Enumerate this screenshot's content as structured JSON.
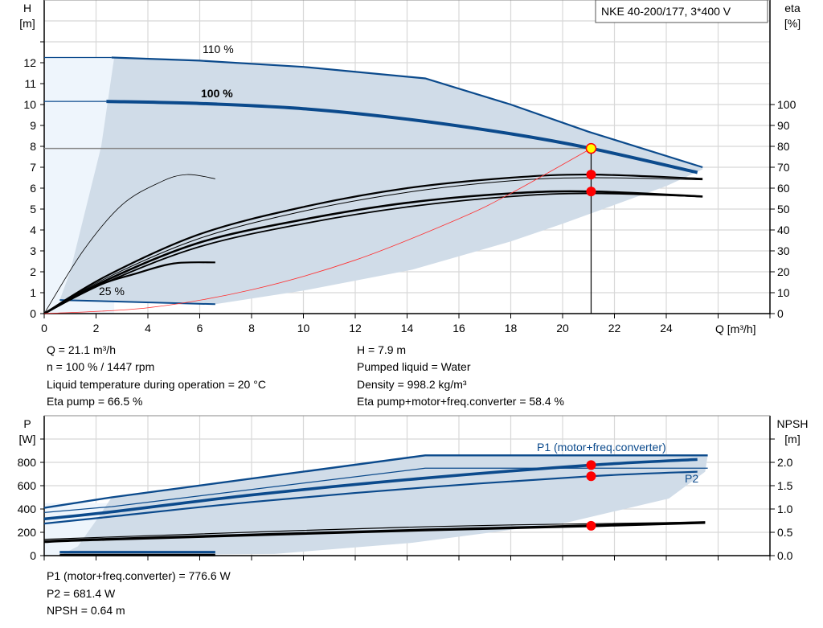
{
  "title_box": "NKE 40-200/177, 3*400 V",
  "colors": {
    "curve_blue": "#0b4a8c",
    "shade": "#d0dce8",
    "shade_light": "#eef5fc",
    "system_curve": "#ff3030",
    "duty_point": "#ffff00",
    "marker": "#ff0000",
    "grid": "#d8d8d8"
  },
  "chart_data": [
    {
      "type": "line",
      "name_box": "NKE 40-200/177, 3*400 V",
      "xlabel": "Q [m³/h]",
      "ylabel_left": [
        "H",
        "[m]"
      ],
      "ylabel_right": [
        "eta",
        "[%]"
      ],
      "xlim": [
        0,
        28
      ],
      "ylim_left": [
        0,
        15
      ],
      "ylim_right": [
        0,
        150
      ],
      "x_ticks": [
        "0",
        "2",
        "4",
        "6",
        "8",
        "10",
        "12",
        "14",
        "16",
        "18",
        "20",
        "22",
        "24"
      ],
      "y_ticks_left": [
        "0",
        "1",
        "2",
        "3",
        "4",
        "5",
        "6",
        "7",
        "8",
        "9",
        "10",
        "11",
        "12"
      ],
      "y_ticks_right": [
        "0",
        "10",
        "20",
        "30",
        "40",
        "50",
        "60",
        "70",
        "80",
        "90",
        "100"
      ],
      "grid": true,
      "curve_labels": {
        "speed_110": "110 %",
        "speed_100": "100 %",
        "speed_25": "25 %"
      },
      "series": [
        {
          "role": "H 110% speed",
          "axis": "left",
          "points": [
            [
              2.6,
              12.25
            ],
            [
              6,
              12.1
            ],
            [
              10,
              11.8
            ],
            [
              14.7,
              11.25
            ],
            [
              18,
              10
            ],
            [
              21,
              8.7
            ],
            [
              25.4,
              7.0
            ]
          ]
        },
        {
          "role": "H 100% speed",
          "axis": "left",
          "points": [
            [
              2.4,
              10.15
            ],
            [
              6,
              10.05
            ],
            [
              10,
              9.8
            ],
            [
              14,
              9.3
            ],
            [
              18,
              8.6
            ],
            [
              21.1,
              7.9
            ],
            [
              25.2,
              6.75
            ]
          ]
        },
        {
          "role": "H 25% speed",
          "axis": "left",
          "points": [
            [
              0.6,
              0.65
            ],
            [
              6.6,
              0.45
            ]
          ]
        },
        {
          "role": "eta pump",
          "axis": "right",
          "points": [
            [
              0,
              0
            ],
            [
              2.4,
              18
            ],
            [
              6,
              38
            ],
            [
              10,
              51
            ],
            [
              14,
              60
            ],
            [
              18,
              65
            ],
            [
              21.1,
              66.5
            ],
            [
              25.4,
              64.5
            ]
          ]
        },
        {
          "role": "eta pump secondary",
          "axis": "right",
          "points": [
            [
              0,
              0
            ],
            [
              2.4,
              17
            ],
            [
              6,
              36
            ],
            [
              10,
              49
            ],
            [
              14,
              58
            ],
            [
              18,
              63.5
            ],
            [
              21.1,
              65
            ],
            [
              25.4,
              64
            ]
          ]
        },
        {
          "role": "eta total",
          "axis": "right",
          "points": [
            [
              0,
              0
            ],
            [
              2.4,
              16
            ],
            [
              6,
              34
            ],
            [
              10,
              45
            ],
            [
              14,
              53
            ],
            [
              18,
              57.5
            ],
            [
              21.1,
              58.4
            ],
            [
              25.4,
              56
            ]
          ]
        },
        {
          "role": "eta total secondary",
          "axis": "right",
          "points": [
            [
              0,
              0
            ],
            [
              2.4,
              15
            ],
            [
              6,
              32
            ],
            [
              10,
              43
            ],
            [
              14,
              51
            ],
            [
              18,
              56
            ],
            [
              21.1,
              57.5
            ],
            [
              25.4,
              56
            ]
          ]
        },
        {
          "role": "eta pump 25%",
          "axis": "right",
          "points": [
            [
              0,
              0
            ],
            [
              1.5,
              30
            ],
            [
              3,
              52
            ],
            [
              4.5,
              63
            ],
            [
              5.5,
              66.5
            ],
            [
              6.6,
              64.5
            ]
          ]
        },
        {
          "role": "eta total 25%",
          "axis": "right",
          "points": [
            [
              0,
              0
            ],
            [
              2,
              13
            ],
            [
              3.5,
              19
            ],
            [
              5,
              24
            ],
            [
              6.6,
              24.5
            ]
          ]
        },
        {
          "role": "system curve",
          "axis": "left",
          "points": [
            [
              0,
              0
            ],
            [
              4,
              0.28
            ],
            [
              8,
              1.14
            ],
            [
              12,
              2.56
            ],
            [
              16,
              4.54
            ],
            [
              18,
              5.75
            ],
            [
              21.1,
              7.9
            ]
          ]
        }
      ],
      "envelope_lower": [
        [
          6.6,
          0.45
        ],
        [
          10,
          1.1
        ],
        [
          14.2,
          2.1
        ],
        [
          18,
          3.45
        ],
        [
          20,
          4.3
        ],
        [
          24,
          6.1
        ],
        [
          25.4,
          6.9
        ]
      ],
      "envelope_left": [
        [
          0.6,
          0.65
        ],
        [
          1.0,
          2
        ],
        [
          1.4,
          4
        ],
        [
          2.2,
          8
        ],
        [
          2.7,
          12.25
        ]
      ],
      "duty_point": {
        "Q": 21.1,
        "H": 7.9,
        "eta_pump": 66.5,
        "eta_total": 58.4
      }
    },
    {
      "type": "line",
      "xlim": [
        0,
        28
      ],
      "ylabel_left": [
        "P",
        "[W]"
      ],
      "ylabel_right": [
        "NPSH",
        "[m]"
      ],
      "ylim_left": [
        0,
        1200
      ],
      "ylim_right": [
        0,
        3.0
      ],
      "y_ticks_left": [
        "0",
        "200",
        "400",
        "600",
        "800"
      ],
      "y_ticks_right": [
        "0.0",
        "0.5",
        "1.0",
        "1.5",
        "2.0"
      ],
      "grid": true,
      "curve_labels": {
        "p1": "P1 (motor+freq.converter)",
        "p2": "P2"
      },
      "series": [
        {
          "role": "P1 110%",
          "axis": "left",
          "points": [
            [
              0,
              410
            ],
            [
              2.6,
              500
            ],
            [
              14.7,
              860
            ],
            [
              25.6,
              860
            ]
          ]
        },
        {
          "role": "P1 max thin",
          "axis": "left",
          "points": [
            [
              0,
              370
            ],
            [
              2.6,
              420
            ],
            [
              14.7,
              750
            ],
            [
              25.6,
              750
            ]
          ]
        },
        {
          "role": "P1 100%",
          "axis": "left",
          "points": [
            [
              0,
              315
            ],
            [
              2.4,
              370
            ],
            [
              8,
              520
            ],
            [
              14.7,
              665
            ],
            [
              21.1,
              776.6
            ],
            [
              25.2,
              825
            ]
          ]
        },
        {
          "role": "P2 100%",
          "axis": "left",
          "points": [
            [
              0,
              275
            ],
            [
              2.4,
              330
            ],
            [
              8,
              460
            ],
            [
              14.7,
              585
            ],
            [
              21.1,
              681.4
            ],
            [
              25.2,
              720
            ]
          ]
        },
        {
          "role": "NPSH",
          "axis": "right",
          "points": [
            [
              0,
              0.3
            ],
            [
              2.4,
              0.35
            ],
            [
              14.7,
              0.55
            ],
            [
              21.1,
              0.64
            ],
            [
              25.5,
              0.71
            ]
          ]
        },
        {
          "role": "NPSH thin",
          "axis": "right",
          "points": [
            [
              0,
              0.35
            ],
            [
              2.6,
              0.4
            ],
            [
              14.7,
              0.62
            ],
            [
              25.5,
              0.72
            ]
          ]
        },
        {
          "role": "P1 25%",
          "axis": "left",
          "points": [
            [
              0.6,
              30
            ],
            [
              6.6,
              30
            ]
          ]
        },
        {
          "role": "NPSH 25%",
          "axis": "left",
          "points": [
            [
              0.6,
              5
            ],
            [
              6.6,
              5
            ]
          ]
        }
      ],
      "envelope_lower": [
        [
          25.6,
          860
        ],
        [
          25.5,
          720
        ],
        [
          24.1,
          490
        ],
        [
          20.2,
          285
        ],
        [
          14.2,
          110
        ],
        [
          8.9,
          15
        ],
        [
          0.6,
          0
        ]
      ],
      "envelope_left": [
        [
          0.6,
          0
        ],
        [
          1.3,
          80
        ],
        [
          2.0,
          300
        ],
        [
          2.6,
          500
        ]
      ],
      "duty_point": {
        "Q": 21.1,
        "P1": 776.6,
        "P2": 681.4,
        "NPSH": 0.64
      }
    }
  ],
  "info_top": {
    "left": [
      "Q = 21.1 m³/h",
      "n = 100 % / 1447 rpm",
      "Liquid temperature during operation = 20 °C",
      "Eta pump = 66.5 %"
    ],
    "right": [
      "H = 7.9 m",
      "Pumped liquid = Water",
      "Density = 998.2 kg/m³",
      "Eta pump+motor+freq.converter = 58.4 %"
    ]
  },
  "info_bottom": [
    "P1 (motor+freq.converter) = 776.6 W",
    "P2 = 681.4 W",
    "NPSH = 0.64 m"
  ]
}
